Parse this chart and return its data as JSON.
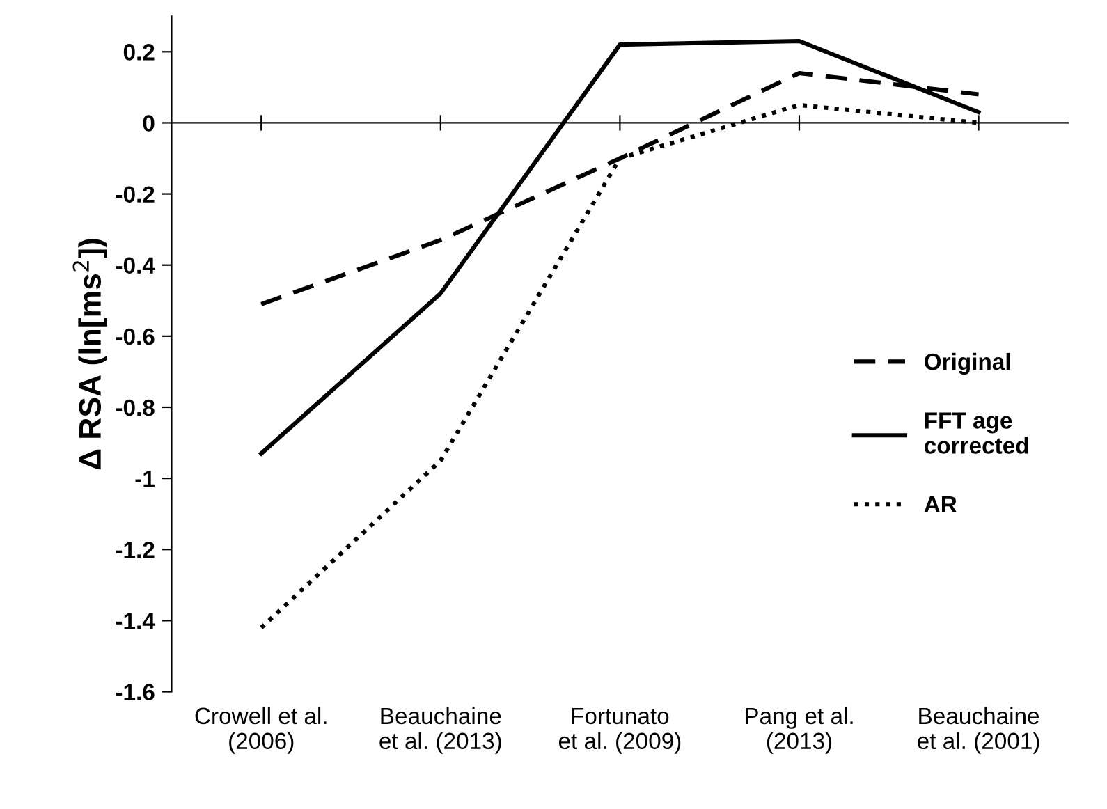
{
  "chart_data": {
    "type": "line",
    "ylabel": "Δ RSA (ln[ms$^{2}$])",
    "categories": [
      "Crowell et al.\n(2006)",
      "Beauchaine\net al. (2013)",
      "Fortunato\net al. (2009)",
      "Pang et al.\n(2013)",
      "Beauchaine\net al. (2001)"
    ],
    "series": [
      {
        "name": "Original",
        "color": "#000000",
        "line_style": "dashed",
        "values": [
          -0.51,
          -0.33,
          -0.1,
          0.14,
          0.08
        ]
      },
      {
        "name": "FFT age\ncorrected",
        "color": "#000000",
        "line_style": "solid",
        "values": [
          -0.93,
          -0.48,
          0.22,
          0.23,
          0.03
        ]
      },
      {
        "name": "AR",
        "color": "#000000",
        "line_style": "dotted",
        "values": [
          -1.42,
          -0.95,
          -0.1,
          0.05,
          0.0
        ]
      }
    ],
    "ylim": [
      -1.6,
      0.3
    ],
    "yticks": [
      -1.6,
      -1.4,
      -1.2,
      -1,
      -0.8,
      -0.6,
      -0.4,
      -0.2,
      0,
      0.2
    ],
    "legend": "right",
    "marker": "none"
  }
}
